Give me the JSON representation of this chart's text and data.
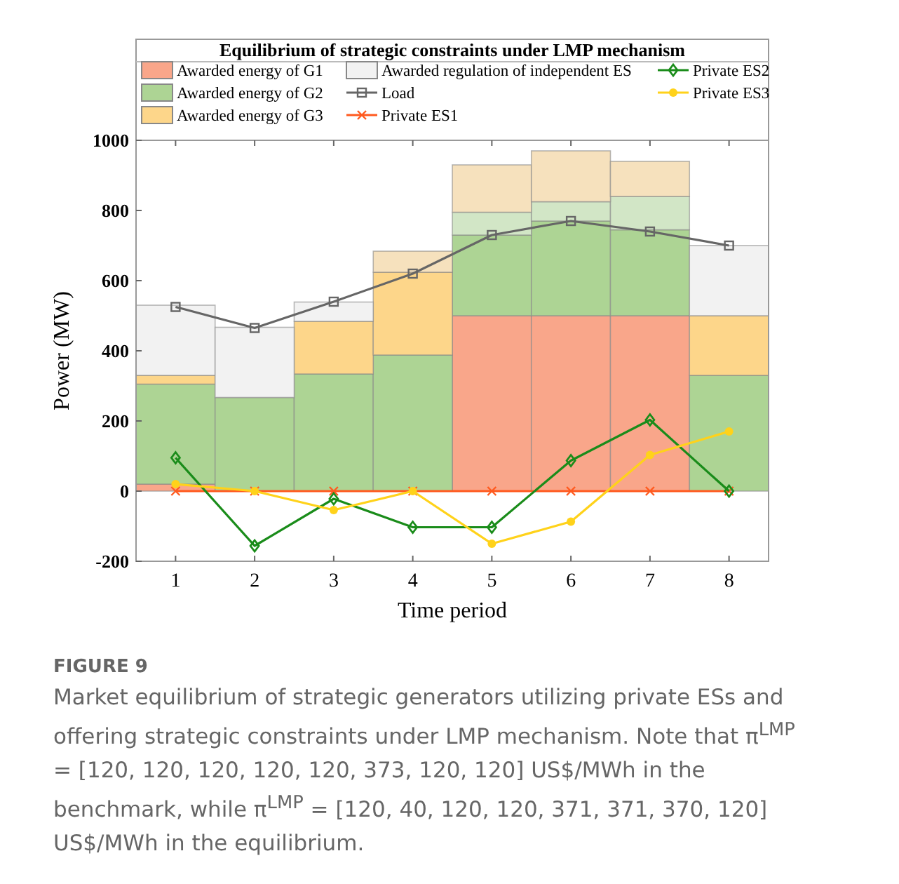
{
  "chart_data": {
    "type": "bar",
    "stacked": true,
    "title": "Equilibrium of strategic constraints under LMP mechanism",
    "xlabel": "Time period",
    "ylabel": "Power (MW)",
    "categories": [
      "1",
      "2",
      "3",
      "4",
      "5",
      "6",
      "7",
      "8"
    ],
    "ylim": [
      -200,
      1000
    ],
    "yticks": [
      -200,
      0,
      200,
      400,
      600,
      800,
      1000
    ],
    "legend": "top",
    "grid": false,
    "series": [
      {
        "name": "Awarded energy of G1",
        "color": "#f9a68a",
        "values": [
          20,
          0,
          0,
          0,
          500,
          500,
          500,
          0
        ]
      },
      {
        "name": "Awarded energy of G2",
        "color": "#add494",
        "values": [
          285,
          267,
          334,
          388,
          230,
          270,
          245,
          330
        ]
      },
      {
        "color": "#d2e6c6",
        "values": [
          0,
          0,
          0,
          0,
          65,
          55,
          95,
          0
        ]
      },
      {
        "name": "Awarded energy of G3",
        "color": "#fdd68a",
        "values": [
          25,
          0,
          150,
          236,
          0,
          0,
          0,
          170
        ]
      },
      {
        "color": "#f6e1bd",
        "values": [
          0,
          0,
          0,
          60,
          135,
          145,
          100,
          0
        ]
      },
      {
        "name": "Awarded regulation of independent ES",
        "color": "#f2f2f2",
        "values": [
          200,
          200,
          55,
          0,
          0,
          0,
          0,
          200
        ]
      },
      {
        "name": "Load",
        "type": "line",
        "marker": "square",
        "color": "#666666",
        "values": [
          525,
          465,
          540,
          620,
          730,
          770,
          740,
          700
        ]
      },
      {
        "name": "Private ES1",
        "type": "line",
        "marker": "cross",
        "color": "#ff5a1f",
        "values": [
          0,
          0,
          0,
          0,
          0,
          0,
          0,
          0
        ]
      },
      {
        "name": "Private ES2",
        "type": "line",
        "marker": "diamond",
        "color": "#1a8c1a",
        "values": [
          95,
          -156,
          -22,
          -103,
          -103,
          87,
          203,
          0
        ]
      },
      {
        "name": "Private ES3",
        "type": "line",
        "marker": "circle",
        "color": "#ffd21a",
        "values": [
          20,
          0,
          -54,
          0,
          -150,
          -87,
          103,
          170
        ]
      }
    ],
    "annotations": [
      "FIGURE 9",
      "Market equilibrium of strategic generators utilizing private ESs and offering strategic constraints under LMP mechanism. Note that π$^{LMP}$ = [120, 120, 120, 120, 120, 373, 120, 120] US$/MWh in the benchmark, while π$^{LMP}$ = [120, 40, 120, 120, 371, 371, 370, 120] US$/MWh in the equilibrium."
    ]
  }
}
